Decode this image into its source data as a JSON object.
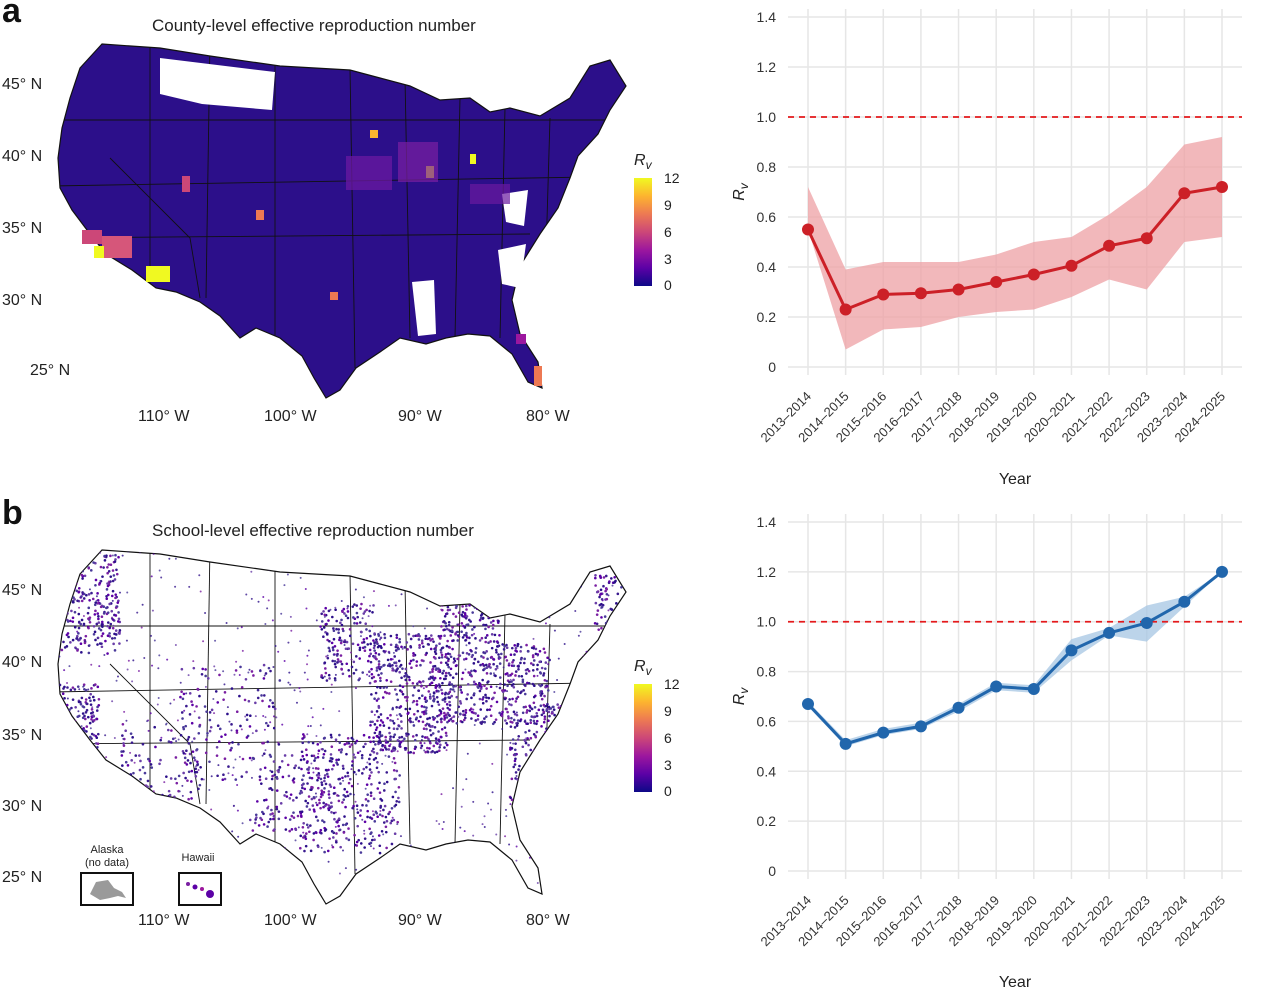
{
  "panels": [
    {
      "letter": "a",
      "map_title": "County-level effective reproduction number"
    },
    {
      "letter": "b",
      "map_title": "School-level effective reproduction number"
    }
  ],
  "map_axes": {
    "lat_labels": [
      "45° N",
      "40° N",
      "35° N",
      "30° N",
      "25° N"
    ],
    "lon_labels": [
      "110° W",
      "100° W",
      "90° W",
      "80° W"
    ]
  },
  "legend": {
    "title_main": "R",
    "title_sub": "v",
    "ticks": [
      "12",
      "9",
      "6",
      "3",
      "0"
    ]
  },
  "insets": {
    "alaska_line1": "Alaska",
    "alaska_line2": "(no data)",
    "hawaii": "Hawaii"
  },
  "colors": {
    "county_line": "#cc2027",
    "county_band": "#eda0a4",
    "school_line": "#2166ac",
    "school_band": "#a6c5e3",
    "threshold": "#e41a1c",
    "map_base": "#2c0f8a",
    "map_outline": "#111111"
  },
  "chart_data": [
    {
      "type": "line",
      "xlabel": "Year",
      "ylabel": "R",
      "ylabel_sub": "v",
      "categories": [
        "2013–2014",
        "2014–2015",
        "2015–2016",
        "2016–2017",
        "2017–2018",
        "2018–2019",
        "2019–2020",
        "2020–2021",
        "2021–2022",
        "2022–2023",
        "2023–2024",
        "2024–2025"
      ],
      "values": [
        0.55,
        0.23,
        0.29,
        0.295,
        0.31,
        0.34,
        0.37,
        0.405,
        0.485,
        0.515,
        0.695,
        0.72
      ],
      "lower": [
        0.55,
        0.07,
        0.15,
        0.16,
        0.2,
        0.22,
        0.23,
        0.28,
        0.35,
        0.31,
        0.5,
        0.52
      ],
      "upper": [
        0.72,
        0.39,
        0.42,
        0.42,
        0.42,
        0.45,
        0.5,
        0.52,
        0.61,
        0.72,
        0.89,
        0.92
      ],
      "ylim": [
        0,
        1.4
      ],
      "yticks": [
        "0",
        "0.2",
        "0.4",
        "0.6",
        "0.8",
        "1.0",
        "1.2",
        "1.4"
      ],
      "threshold": 1.0,
      "grid": true
    },
    {
      "type": "line",
      "xlabel": "Year",
      "ylabel": "R",
      "ylabel_sub": "v",
      "categories": [
        "2013–2014",
        "2014–2015",
        "2015–2016",
        "2016–2017",
        "2017–2018",
        "2018–2019",
        "2019–2020",
        "2020–2021",
        "2021–2022",
        "2022–2023",
        "2023–2024",
        "2024–2025"
      ],
      "values": [
        0.67,
        0.51,
        0.555,
        0.58,
        0.655,
        0.74,
        0.73,
        0.885,
        0.955,
        0.995,
        1.08,
        1.2
      ],
      "lower": [
        0.66,
        0.5,
        0.545,
        0.57,
        0.64,
        0.725,
        0.715,
        0.845,
        0.945,
        0.92,
        1.06,
        1.2
      ],
      "upper": [
        0.68,
        0.525,
        0.57,
        0.595,
        0.67,
        0.755,
        0.745,
        0.93,
        0.975,
        1.065,
        1.1,
        1.2
      ],
      "ylim": [
        0,
        1.4
      ],
      "yticks": [
        "0",
        "0.2",
        "0.4",
        "0.6",
        "0.8",
        "1.0",
        "1.2",
        "1.4"
      ],
      "threshold": 1.0,
      "grid": true
    }
  ]
}
